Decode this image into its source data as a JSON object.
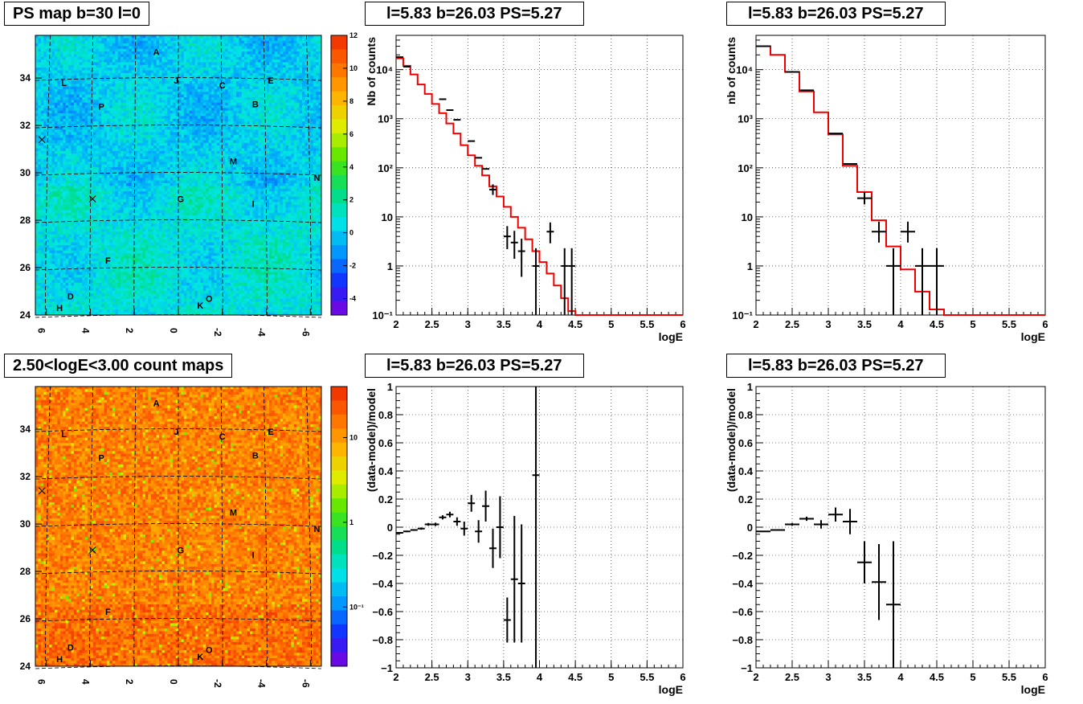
{
  "titles": {
    "map_top": "PS map b=30 l=0",
    "map_bottom": "2.50<logE<3.00 count maps",
    "spec_a": "l=5.83 b=26.03 PS=5.27",
    "spec_b": "l=5.83 b=26.03 PS=5.27",
    "res_a": "l=5.83 b=26.03 PS=5.27",
    "res_b": "l=5.83 b=26.03 PS=5.27"
  },
  "colors": {
    "model_line": "#ee0000",
    "data": "#000000",
    "grid": "#000000"
  },
  "chart_data": [
    {
      "id": "ps-map",
      "type": "heatmap",
      "title": "PS map b=30 l=0",
      "x_ticks": [
        "6",
        "4",
        "2",
        "0",
        "-2",
        "-4",
        "-6"
      ],
      "y_ticks": [
        "24",
        "26",
        "28",
        "30",
        "32",
        "34"
      ],
      "xlim": [
        6.5,
        -6.5
      ],
      "ylim": [
        24,
        35.8
      ],
      "colorbar": {
        "scale": "linear",
        "min": -5,
        "max": 12,
        "ticks": [
          "-4",
          "-2",
          "0",
          "2",
          "4",
          "6",
          "8",
          "10",
          "12"
        ]
      },
      "sources": [
        {
          "label": "A",
          "l": 1.0,
          "b": 35.1
        },
        {
          "label": "L",
          "l": 5.2,
          "b": 33.8
        },
        {
          "label": "J",
          "l": 0.1,
          "b": 33.9
        },
        {
          "label": "C",
          "l": -2.0,
          "b": 33.7
        },
        {
          "label": "E",
          "l": -4.2,
          "b": 33.9
        },
        {
          "label": "B",
          "l": -3.5,
          "b": 32.9
        },
        {
          "label": "P",
          "l": 3.5,
          "b": 32.8
        },
        {
          "label": "M",
          "l": -2.5,
          "b": 30.5
        },
        {
          "label": "N",
          "l": -6.3,
          "b": 29.8
        },
        {
          "label": "G",
          "l": -0.1,
          "b": 28.9
        },
        {
          "label": "I",
          "l": -3.4,
          "b": 28.7
        },
        {
          "label": "F",
          "l": 3.2,
          "b": 26.3
        },
        {
          "label": "D",
          "l": 4.9,
          "b": 24.8
        },
        {
          "label": "O",
          "l": -1.4,
          "b": 24.7
        },
        {
          "label": "H",
          "l": 5.4,
          "b": 24.3
        },
        {
          "label": "K",
          "l": -1.0,
          "b": 24.4
        }
      ]
    },
    {
      "id": "count-map",
      "type": "heatmap",
      "title": "2.50<logE<3.00 count maps",
      "x_ticks": [
        "6",
        "4",
        "2",
        "0",
        "-2",
        "-4",
        "-6"
      ],
      "y_ticks": [
        "24",
        "26",
        "28",
        "30",
        "32",
        "34"
      ],
      "xlim": [
        6.5,
        -6.5
      ],
      "ylim": [
        24,
        35.8
      ],
      "colorbar": {
        "scale": "log",
        "min": 0.02,
        "max": 40,
        "ticks": [
          "10",
          "1",
          "10⁻¹"
        ]
      },
      "sources": [
        {
          "label": "A",
          "l": 1.0,
          "b": 35.1
        },
        {
          "label": "L",
          "l": 5.2,
          "b": 33.8
        },
        {
          "label": "J",
          "l": 0.1,
          "b": 33.9
        },
        {
          "label": "C",
          "l": -2.0,
          "b": 33.7
        },
        {
          "label": "E",
          "l": -4.2,
          "b": 33.9
        },
        {
          "label": "B",
          "l": -3.5,
          "b": 32.9
        },
        {
          "label": "P",
          "l": 3.5,
          "b": 32.8
        },
        {
          "label": "M",
          "l": -2.5,
          "b": 30.5
        },
        {
          "label": "N",
          "l": -6.3,
          "b": 29.8
        },
        {
          "label": "G",
          "l": -0.1,
          "b": 28.9
        },
        {
          "label": "I",
          "l": -3.4,
          "b": 28.7
        },
        {
          "label": "F",
          "l": 3.2,
          "b": 26.3
        },
        {
          "label": "D",
          "l": 4.9,
          "b": 24.8
        },
        {
          "label": "O",
          "l": -1.4,
          "b": 24.7
        },
        {
          "label": "H",
          "l": 5.4,
          "b": 24.3
        },
        {
          "label": "K",
          "l": -1.0,
          "b": 24.4
        }
      ]
    },
    {
      "id": "spectrum-fine",
      "type": "line",
      "title": "l=5.83 b=26.03 PS=5.27",
      "xlabel": "logE",
      "ylabel": "Nb of counts",
      "xlim": [
        2,
        6
      ],
      "ylim": [
        0.1,
        50000
      ],
      "yscale": "log",
      "grid": true,
      "x_ticks": [
        "2",
        "2.5",
        "3",
        "3.5",
        "4",
        "4.5",
        "5",
        "5.5",
        "6"
      ],
      "y_ticks": [
        "10⁻¹",
        "1",
        "10",
        "10²",
        "10³",
        "10⁴"
      ],
      "model_edges": [
        2.0,
        2.1,
        2.2,
        2.3,
        2.4,
        2.5,
        2.6,
        2.7,
        2.8,
        2.9,
        3.0,
        3.1,
        3.2,
        3.3,
        3.4,
        3.5,
        3.6,
        3.7,
        3.8,
        3.9,
        4.0,
        4.1,
        4.2,
        4.3,
        4.4,
        4.5,
        4.6,
        4.7,
        4.8,
        4.9,
        5.0,
        5.1,
        5.2,
        5.3,
        5.4,
        5.5,
        5.6,
        5.7,
        5.8,
        5.9,
        6.0
      ],
      "model_values": [
        17000,
        12000,
        8000,
        5000,
        3200,
        2000,
        1300,
        800,
        500,
        290,
        180,
        110,
        70,
        42,
        26,
        16,
        10,
        6,
        3.5,
        2.0,
        1.2,
        0.7,
        0.4,
        0.22,
        0.12,
        0.1,
        0.1,
        0.1,
        0.1,
        0.1,
        0.1,
        0.1,
        0.1,
        0.1,
        0.1,
        0.1,
        0.1,
        0.1,
        0.1,
        0.1
      ],
      "data_points": [
        {
          "x": 2.05,
          "y": 18000,
          "xerr": 0.05
        },
        {
          "x": 2.15,
          "y": 11500,
          "xerr": 0.05
        },
        {
          "x": 2.65,
          "y": 2500,
          "xerr": 0.05
        },
        {
          "x": 2.75,
          "y": 1500,
          "xerr": 0.05
        },
        {
          "x": 2.85,
          "y": 950,
          "xerr": 0.05
        },
        {
          "x": 3.05,
          "y": 350,
          "xerr": 0.05
        },
        {
          "x": 3.15,
          "y": 160,
          "xerr": 0.05
        },
        {
          "x": 3.25,
          "y": 95,
          "xerr": 0.05
        },
        {
          "x": 3.35,
          "y": 36,
          "xerr": 0.05,
          "ylo": 28,
          "yhi": 46
        },
        {
          "x": 3.55,
          "y": 4,
          "xerr": 0.05,
          "ylo": 2.2,
          "yhi": 6.5
        },
        {
          "x": 3.65,
          "y": 3,
          "xerr": 0.05,
          "ylo": 1.4,
          "yhi": 5.2
        },
        {
          "x": 3.75,
          "y": 2,
          "xerr": 0.05,
          "ylo": 0.6,
          "yhi": 3.6
        },
        {
          "x": 3.95,
          "y": 1,
          "xerr": 0.05,
          "ylo": 0.1,
          "yhi": 2.3
        },
        {
          "x": 4.15,
          "y": 5,
          "xerr": 0.05,
          "ylo": 2.9,
          "yhi": 7.7
        },
        {
          "x": 4.35,
          "y": 1,
          "xerr": 0.05,
          "ylo": 0.1,
          "yhi": 2.3
        },
        {
          "x": 4.45,
          "y": 1,
          "xerr": 0.05,
          "ylo": 0.1,
          "yhi": 2.3
        }
      ]
    },
    {
      "id": "spectrum-coarse",
      "type": "line",
      "title": "l=5.83 b=26.03 PS=5.27",
      "xlabel": "logE",
      "ylabel": "nb of counts",
      "xlim": [
        2,
        6
      ],
      "ylim": [
        0.1,
        50000
      ],
      "yscale": "log",
      "grid": true,
      "x_ticks": [
        "2",
        "2.5",
        "3",
        "3.5",
        "4",
        "4.5",
        "5",
        "5.5",
        "6"
      ],
      "y_ticks": [
        "10⁻¹",
        "1",
        "10",
        "10²",
        "10³",
        "10⁴"
      ],
      "model_edges": [
        2.0,
        2.2,
        2.4,
        2.6,
        2.8,
        3.0,
        3.2,
        3.4,
        3.6,
        3.8,
        4.0,
        4.2,
        4.4,
        4.6,
        4.8,
        5.0,
        5.2,
        5.4,
        5.6,
        5.8,
        6.0
      ],
      "model_values": [
        30000,
        20000,
        9000,
        3600,
        1350,
        480,
        110,
        32,
        8.5,
        2.5,
        0.85,
        0.3,
        0.13,
        0.1,
        0.1,
        0.1,
        0.1,
        0.1,
        0.1,
        0.1
      ],
      "data_points": [
        {
          "x": 2.1,
          "y": 30000,
          "xerr": 0.1
        },
        {
          "x": 2.5,
          "y": 9000,
          "xerr": 0.1
        },
        {
          "x": 2.7,
          "y": 3800,
          "xerr": 0.1
        },
        {
          "x": 3.1,
          "y": 500,
          "xerr": 0.1
        },
        {
          "x": 3.3,
          "y": 120,
          "xerr": 0.1
        },
        {
          "x": 3.5,
          "y": 24,
          "xerr": 0.1,
          "ylo": 18,
          "yhi": 32
        },
        {
          "x": 3.7,
          "y": 5,
          "xerr": 0.1,
          "ylo": 3,
          "yhi": 8
        },
        {
          "x": 3.9,
          "y": 1,
          "xerr": 0.1,
          "ylo": 0.1,
          "yhi": 2.3
        },
        {
          "x": 4.1,
          "y": 5,
          "xerr": 0.1,
          "ylo": 3,
          "yhi": 8
        },
        {
          "x": 4.3,
          "y": 1,
          "xerr": 0.1,
          "ylo": 0.1,
          "yhi": 2.3
        },
        {
          "x": 4.5,
          "y": 1,
          "xerr": 0.1,
          "ylo": 0.1,
          "yhi": 2.3
        }
      ]
    },
    {
      "id": "residual-fine",
      "type": "scatter",
      "title": "l=5.83 b=26.03 PS=5.27",
      "xlabel": "logE",
      "ylabel": "(data-model)/model",
      "xlim": [
        2,
        6
      ],
      "ylim": [
        -1,
        1
      ],
      "grid": true,
      "x_ticks": [
        "2",
        "2.5",
        "3",
        "3.5",
        "4",
        "4.5",
        "5",
        "5.5",
        "6"
      ],
      "y_ticks": [
        "−1",
        "−0.8",
        "−0.6",
        "−0.4",
        "−0.2",
        "0",
        "0.2",
        "0.4",
        "0.6",
        "0.8",
        "1"
      ],
      "data_points": [
        {
          "x": 2.05,
          "y": -0.04,
          "xerr": 0.05,
          "yerr": 0.005
        },
        {
          "x": 2.15,
          "y": -0.03,
          "xerr": 0.05,
          "yerr": 0.005
        },
        {
          "x": 2.25,
          "y": -0.02,
          "xerr": 0.05,
          "yerr": 0.006
        },
        {
          "x": 2.35,
          "y": -0.01,
          "xerr": 0.05,
          "yerr": 0.008
        },
        {
          "x": 2.45,
          "y": 0.02,
          "xerr": 0.05,
          "yerr": 0.01
        },
        {
          "x": 2.55,
          "y": 0.02,
          "xerr": 0.05,
          "yerr": 0.012
        },
        {
          "x": 2.65,
          "y": 0.07,
          "xerr": 0.05,
          "yerr": 0.015
        },
        {
          "x": 2.75,
          "y": 0.09,
          "xerr": 0.05,
          "yerr": 0.02
        },
        {
          "x": 2.85,
          "y": 0.04,
          "xerr": 0.05,
          "yerr": 0.03
        },
        {
          "x": 2.95,
          "y": -0.01,
          "xerr": 0.05,
          "yerr": 0.05
        },
        {
          "x": 3.05,
          "y": 0.17,
          "xerr": 0.05,
          "yerr": 0.06
        },
        {
          "x": 3.15,
          "y": -0.03,
          "xerr": 0.05,
          "yerr": 0.08
        },
        {
          "x": 3.25,
          "y": 0.15,
          "xerr": 0.05,
          "yerr": 0.11
        },
        {
          "x": 3.35,
          "y": -0.15,
          "xerr": 0.05,
          "yerr": 0.14
        },
        {
          "x": 3.45,
          "y": 0.0,
          "xerr": 0.05,
          "yerr": 0.22
        },
        {
          "x": 3.55,
          "y": -0.66,
          "xerr": 0.05,
          "yerr": 0.16
        },
        {
          "x": 3.65,
          "y": -0.37,
          "xerr": 0.05,
          "yerr": 0.45
        },
        {
          "x": 3.75,
          "y": -0.4,
          "xerr": 0.05,
          "yerr": 0.42
        },
        {
          "x": 3.95,
          "y": 0.37,
          "xerr": 0.05,
          "yerr": 1.4
        }
      ]
    },
    {
      "id": "residual-coarse",
      "type": "scatter",
      "title": "l=5.83 b=26.03 PS=5.27",
      "xlabel": "logE",
      "ylabel": "(data-model)/model",
      "xlim": [
        2,
        6
      ],
      "ylim": [
        -1,
        1
      ],
      "grid": true,
      "x_ticks": [
        "2",
        "2.5",
        "3",
        "3.5",
        "4",
        "4.5",
        "5",
        "5.5",
        "6"
      ],
      "y_ticks": [
        "−1",
        "−0.8",
        "−0.6",
        "−0.4",
        "−0.2",
        "0",
        "0.2",
        "0.4",
        "0.6",
        "0.8",
        "1"
      ],
      "data_points": [
        {
          "x": 2.1,
          "y": -0.03,
          "xerr": 0.1,
          "yerr": 0.004
        },
        {
          "x": 2.3,
          "y": -0.02,
          "xerr": 0.1,
          "yerr": 0.005
        },
        {
          "x": 2.5,
          "y": 0.02,
          "xerr": 0.1,
          "yerr": 0.01
        },
        {
          "x": 2.7,
          "y": 0.06,
          "xerr": 0.1,
          "yerr": 0.015
        },
        {
          "x": 2.9,
          "y": 0.02,
          "xerr": 0.1,
          "yerr": 0.03
        },
        {
          "x": 3.1,
          "y": 0.09,
          "xerr": 0.1,
          "yerr": 0.05
        },
        {
          "x": 3.3,
          "y": 0.04,
          "xerr": 0.1,
          "yerr": 0.09
        },
        {
          "x": 3.5,
          "y": -0.25,
          "xerr": 0.1,
          "yerr": 0.15
        },
        {
          "x": 3.7,
          "y": -0.39,
          "xerr": 0.1,
          "yerr": 0.27
        },
        {
          "x": 3.9,
          "y": -0.55,
          "xerr": 0.1,
          "yerr": 0.45
        }
      ]
    }
  ]
}
